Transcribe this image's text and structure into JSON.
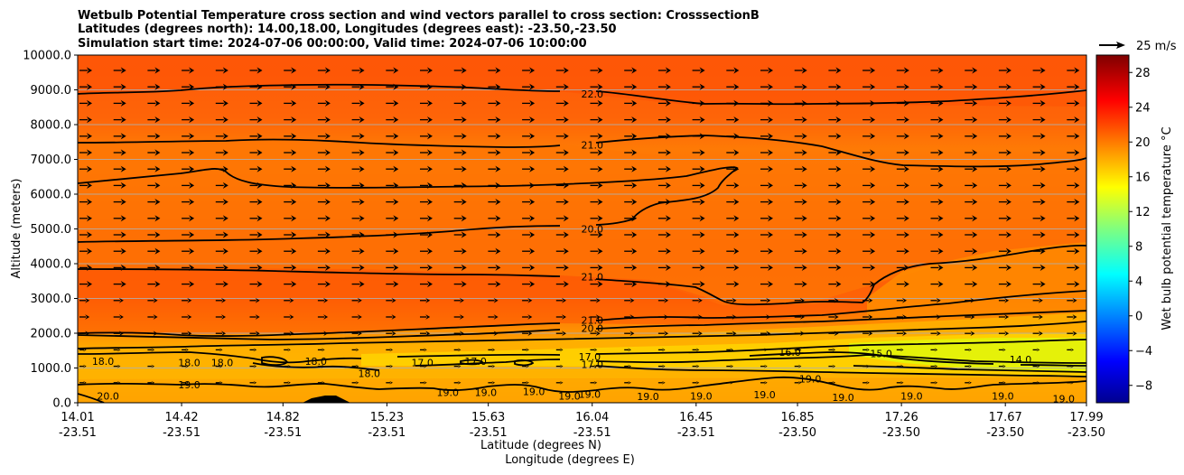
{
  "chart_data": {
    "type": "contour",
    "title_lines": [
      "Wetbulb Potential Temperature cross section and wind vectors parallel to cross section: CrosssectionB",
      "Latitudes (degrees north): 14.00,18.00, Longitudes (degrees east): -23.50,-23.50",
      "Simulation start time: 2024-07-06 00:00:00, Valid time: 2024-07-06 10:00:00"
    ],
    "ylabel": "Altitude (meters)",
    "xlabel_lat": "Latitude (degrees N)",
    "xlabel_lon": "Longitude (degrees E)",
    "ylim": [
      0,
      10000
    ],
    "yticks": [
      "0.0",
      "1000.0",
      "2000.0",
      "3000.0",
      "4000.0",
      "5000.0",
      "6000.0",
      "7000.0",
      "8000.0",
      "9000.0",
      "10000.0"
    ],
    "xticks": [
      {
        "lat": "14.01",
        "lon": "-23.51"
      },
      {
        "lat": "14.42",
        "lon": "-23.51"
      },
      {
        "lat": "14.82",
        "lon": "-23.51"
      },
      {
        "lat": "15.23",
        "lon": "-23.51"
      },
      {
        "lat": "15.63",
        "lon": "-23.51"
      },
      {
        "lat": "16.04",
        "lon": "-23.51"
      },
      {
        "lat": "16.45",
        "lon": "-23.51"
      },
      {
        "lat": "16.85",
        "lon": "-23.50"
      },
      {
        "lat": "17.26",
        "lon": "-23.50"
      },
      {
        "lat": "17.67",
        "lon": "-23.50"
      },
      {
        "lat": "17.99",
        "lon": "-23.50"
      }
    ],
    "colorbar": {
      "label": "Wet bulb potential temperature $^\\circ$C",
      "label_text": "Wet bulb potential temperature °C",
      "range": [
        -10,
        30
      ],
      "ticks": [
        "−8",
        "−4",
        "0",
        "4",
        "8",
        "12",
        "16",
        "20",
        "24",
        "28"
      ],
      "tick_values": [
        -8,
        -4,
        0,
        4,
        8,
        12,
        16,
        20,
        24,
        28
      ]
    },
    "quiver_key": "25 m/s",
    "contour_labels": [
      {
        "text": "22.0",
        "lat": 16.04,
        "alt": 8880
      },
      {
        "text": "21.0",
        "lat": 16.04,
        "alt": 7420
      },
      {
        "text": "20.0",
        "lat": 16.04,
        "alt": 5000
      },
      {
        "text": "21.0",
        "lat": 16.04,
        "alt": 3620
      },
      {
        "text": "21.0",
        "lat": 16.04,
        "alt": 2380
      },
      {
        "text": "20.0",
        "lat": 16.04,
        "alt": 2140
      },
      {
        "text": "17.0",
        "lat": 16.03,
        "alt": 1330
      },
      {
        "text": "17.0",
        "lat": 16.04,
        "alt": 1100
      },
      {
        "text": "18.0",
        "lat": 14.11,
        "alt": 1190
      },
      {
        "text": "18.0",
        "lat": 14.45,
        "alt": 1150
      },
      {
        "text": "18.0",
        "lat": 14.58,
        "alt": 1150
      },
      {
        "text": "18.0",
        "lat": 14.95,
        "alt": 1200
      },
      {
        "text": "18.0",
        "lat": 15.16,
        "alt": 850
      },
      {
        "text": "17.0",
        "lat": 15.37,
        "alt": 1150
      },
      {
        "text": "17.0",
        "lat": 15.58,
        "alt": 1200
      },
      {
        "text": "16.0",
        "lat": 16.82,
        "alt": 1450
      },
      {
        "text": "15.0",
        "lat": 17.18,
        "alt": 1420
      },
      {
        "text": "14.0",
        "lat": 17.73,
        "alt": 1250
      },
      {
        "text": "19.0",
        "lat": 14.45,
        "alt": 520
      },
      {
        "text": "19.0",
        "lat": 16.9,
        "alt": 690
      },
      {
        "text": "20.0",
        "lat": 14.13,
        "alt": 200
      },
      {
        "text": "19.0",
        "lat": 15.47,
        "alt": 300
      },
      {
        "text": "19.0",
        "lat": 15.62,
        "alt": 300
      },
      {
        "text": "19.0",
        "lat": 15.81,
        "alt": 330
      },
      {
        "text": "19.0",
        "lat": 15.95,
        "alt": 190
      },
      {
        "text": "19.0",
        "lat": 16.03,
        "alt": 250
      },
      {
        "text": "19.0",
        "lat": 16.26,
        "alt": 180
      },
      {
        "text": "19.0",
        "lat": 16.47,
        "alt": 200
      },
      {
        "text": "19.0",
        "lat": 16.72,
        "alt": 230
      },
      {
        "text": "19.0",
        "lat": 17.03,
        "alt": 160
      },
      {
        "text": "19.0",
        "lat": 17.3,
        "alt": 200
      },
      {
        "text": "19.0",
        "lat": 17.66,
        "alt": 200
      },
      {
        "text": "19.0",
        "lat": 17.9,
        "alt": 120
      }
    ]
  }
}
